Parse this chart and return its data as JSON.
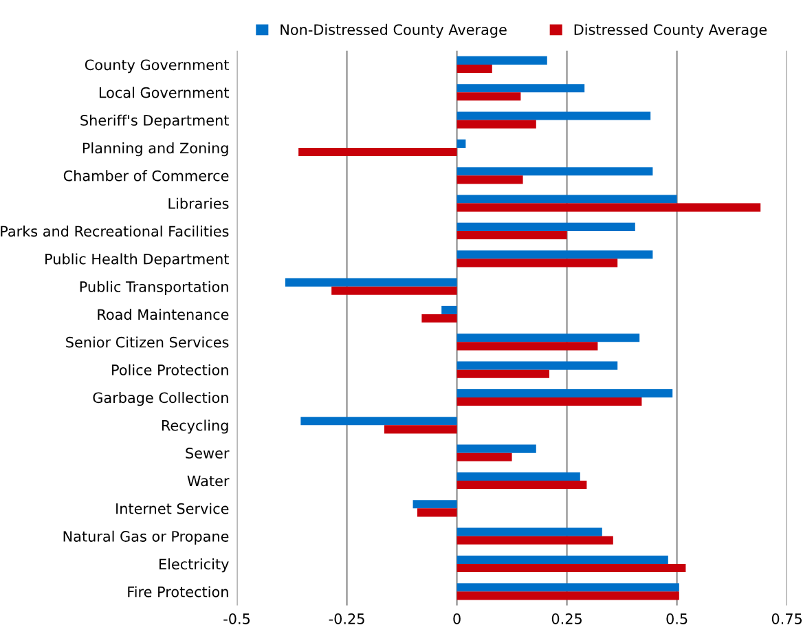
{
  "chart_data": {
    "type": "bar",
    "orientation": "horizontal",
    "categories": [
      "County Government",
      "Local Government",
      "Sheriff's Department",
      "Planning and Zoning",
      "Chamber of Commerce",
      "Libraries",
      "Parks and Recreational Facilities",
      "Public Health Department",
      "Public Transportation",
      "Road Maintenance",
      "Senior Citizen Services",
      "Police Protection",
      "Garbage Collection",
      "Recycling",
      "Sewer",
      "Water",
      "Internet Service",
      "Natural Gas or Propane",
      "Electricity",
      "Fire Protection"
    ],
    "series": [
      {
        "name": "Non-Distressed County Average",
        "color": "#0070c8",
        "values": [
          0.205,
          0.29,
          0.44,
          0.02,
          0.445,
          0.5,
          0.405,
          0.445,
          -0.39,
          -0.035,
          0.415,
          0.365,
          0.49,
          -0.355,
          0.18,
          0.28,
          -0.1,
          0.33,
          0.48,
          0.505
        ]
      },
      {
        "name": "Distressed County Average",
        "color": "#c8000a",
        "values": [
          0.08,
          0.145,
          0.18,
          -0.36,
          0.15,
          0.69,
          0.25,
          0.365,
          -0.285,
          -0.08,
          0.32,
          0.21,
          0.42,
          -0.165,
          0.125,
          0.295,
          -0.09,
          0.355,
          0.52,
          0.505
        ]
      }
    ],
    "xlim": [
      -0.5,
      0.75
    ],
    "xticks": [
      -0.5,
      -0.25,
      0,
      0.25,
      0.5,
      0.75
    ],
    "grid": "x",
    "legend": "top"
  }
}
